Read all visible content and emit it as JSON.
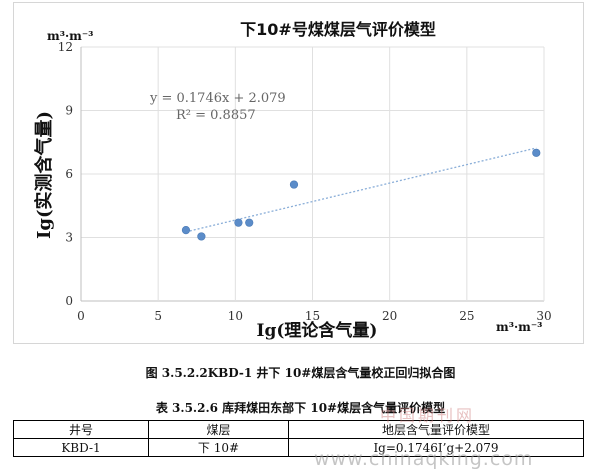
{
  "chart_data": {
    "type": "scatter",
    "title": "下10#号煤煤层气评价模型",
    "xlabel": "Ig(理论含气量)",
    "ylabel": "Ig(实测含气量)",
    "x_unit": "m³·m⁻³",
    "y_unit": "m³·m⁻³",
    "xlim": [
      0,
      30
    ],
    "ylim": [
      0,
      12
    ],
    "x_ticks": [
      "0",
      "5",
      "10",
      "15",
      "20",
      "25",
      "30"
    ],
    "y_ticks": [
      "0",
      "3",
      "6",
      "9",
      "12"
    ],
    "points": [
      {
        "x": 6.8,
        "y": 3.35
      },
      {
        "x": 7.8,
        "y": 3.05
      },
      {
        "x": 10.2,
        "y": 3.7
      },
      {
        "x": 10.9,
        "y": 3.7
      },
      {
        "x": 13.8,
        "y": 5.5
      },
      {
        "x": 29.5,
        "y": 7.0
      }
    ],
    "trendline": {
      "slope": 0.1746,
      "intercept": 2.079,
      "x_from": 6.8,
      "x_to": 29.5
    },
    "equation_text": "y = 0.1746x  + 2.079",
    "r2_text": "R² = 0.8857",
    "grid": true,
    "colors": {
      "point": "#5b8cc9",
      "trendline": "#8aaed8",
      "grid": "#e0e0e0"
    }
  },
  "figure_caption": "图 3.5.2.2KBD-1 井下 10#煤层含气量校正回归拟合图",
  "table": {
    "caption": "表 3.5.2.6 库拜煤田东部下 10#煤层含气量评价模型",
    "headers": [
      "井号",
      "煤层",
      "地层含气量评价模型"
    ],
    "rows": [
      [
        "KBD-1",
        "下 10#",
        "Ig=0.1746I’g+2.079"
      ]
    ]
  },
  "watermark": "www.chinaqking.com",
  "watermark_cn": "中国期刊网"
}
